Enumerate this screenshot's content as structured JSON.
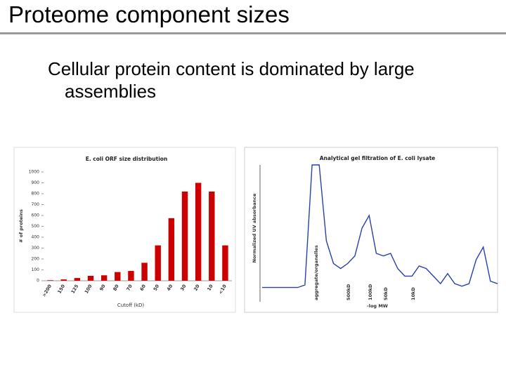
{
  "slide": {
    "title": "Proteome component sizes",
    "bullet": "Cellular protein content is dominated by large assemblies"
  },
  "chart_data": [
    {
      "type": "bar",
      "title": "E. coli ORF size distribution",
      "x_label": "Cutoff (kD)",
      "y_label": "# of proteins",
      "categories": [
        ">200",
        "150",
        "125",
        "100",
        "90",
        "80",
        "70",
        "60",
        "50",
        "40",
        "30",
        "20",
        "10",
        "<10"
      ],
      "values": [
        5,
        12,
        25,
        45,
        50,
        80,
        90,
        165,
        325,
        575,
        820,
        900,
        820,
        325
      ],
      "color": "#cc0000",
      "ylim": [
        0,
        1000
      ],
      "yticks": [
        0,
        100,
        200,
        300,
        400,
        500,
        600,
        700,
        800,
        900,
        1000
      ]
    },
    {
      "type": "line",
      "title": "Analytical gel filtration of E. coli lysate",
      "x_label": "-log MW",
      "y_label": "Normalized UV absorbance",
      "annotations": [
        "aggregate/organelles",
        "500kD",
        "100kD",
        "50kD",
        "10kD"
      ],
      "values": [
        3,
        3,
        3,
        3,
        3,
        3,
        5,
        100,
        100,
        40,
        22,
        18,
        22,
        28,
        50,
        60,
        30,
        28,
        30,
        18,
        12,
        12,
        20,
        18,
        12,
        6,
        14,
        6,
        4,
        6,
        25,
        35,
        8,
        6
      ],
      "color": "#2a3fb0",
      "ylim": [
        0,
        100
      ]
    }
  ]
}
